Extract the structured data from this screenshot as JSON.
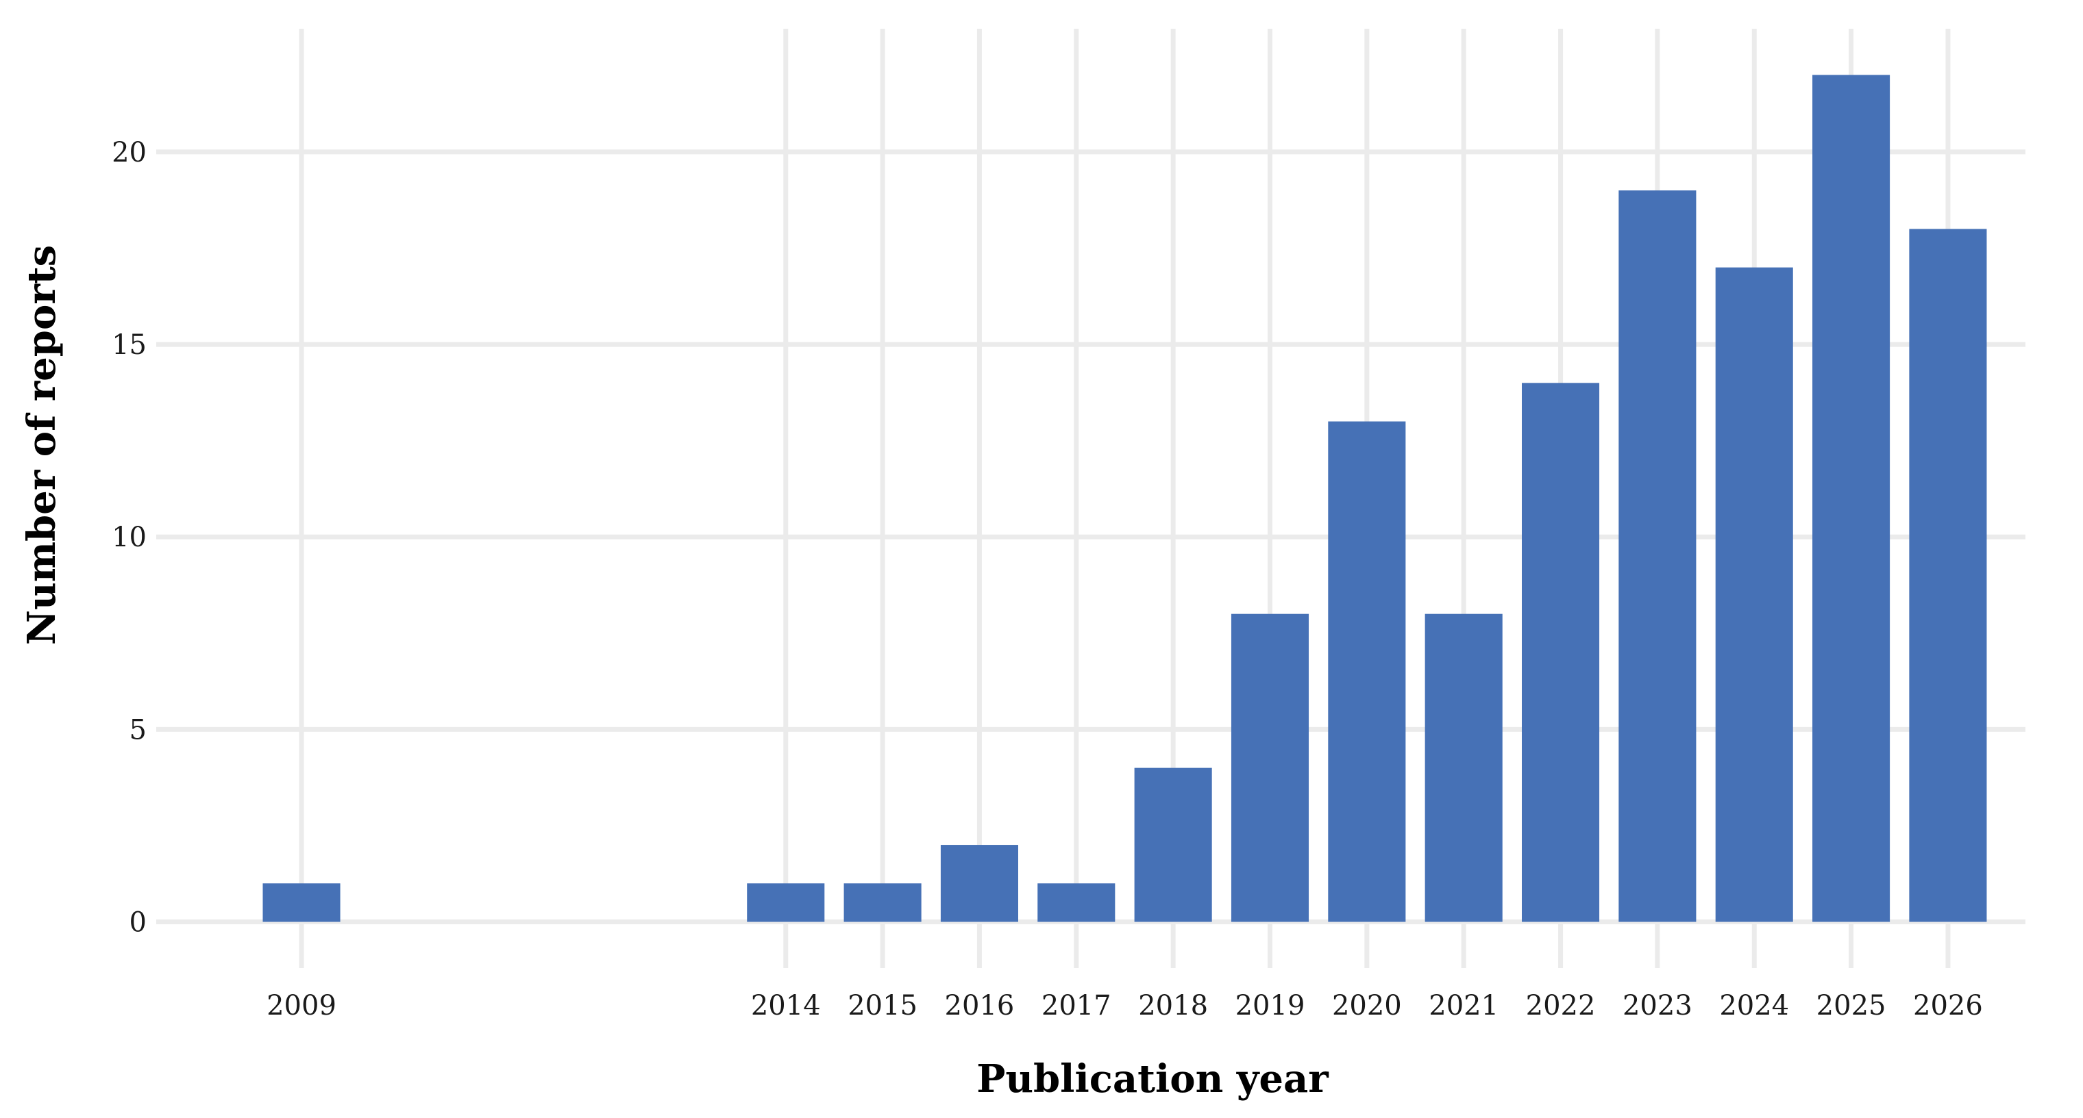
{
  "chart_data": {
    "type": "bar",
    "title": "",
    "xlabel": "Publication year",
    "ylabel": "Number of reports",
    "x_axis": "continuous-year",
    "categories": [
      "2009",
      "2014",
      "2015",
      "2016",
      "2017",
      "2018",
      "2019",
      "2020",
      "2021",
      "2022",
      "2023",
      "2024",
      "2025",
      "2026"
    ],
    "values": [
      1,
      1,
      1,
      2,
      1,
      4,
      8,
      13,
      8,
      14,
      19,
      17,
      22,
      18
    ],
    "xlim": [
      2007.5,
      2026.8
    ],
    "ylim": [
      -1.2,
      23.2
    ],
    "yticks": [
      0,
      5,
      10,
      15,
      20
    ],
    "grid": true,
    "legend": "none",
    "colors": {
      "bar": "#4671b6",
      "grid": "#ebebeb",
      "background": "#ffffff"
    }
  }
}
